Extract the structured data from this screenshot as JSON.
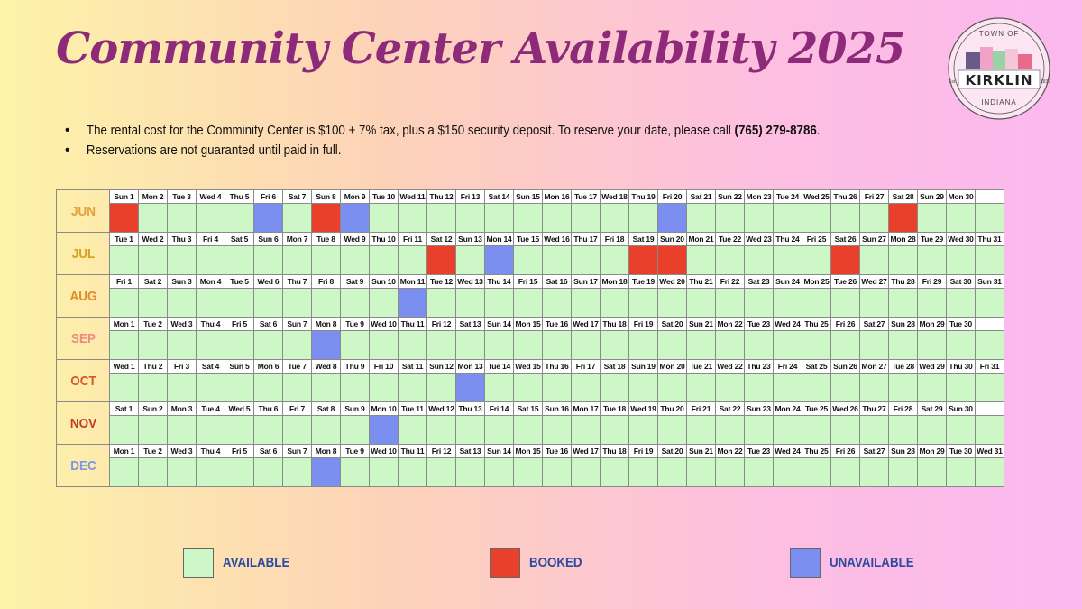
{
  "title": "Community Center Availability 2025",
  "logo": {
    "top_text": "TOWN OF",
    "name": "KIRKLIN",
    "est_left": "Est.",
    "est_right": "1837",
    "bottom_text": "INDIANA"
  },
  "notes": [
    {
      "text": "The rental cost for the Comminity Center is $100 + 7% tax, plus a $150 security deposit. To reserve your date, please call ",
      "bold": "(765) 279-8786",
      "tail": "."
    },
    {
      "text": "Reservations are not guaranted until paid in full.",
      "bold": "",
      "tail": ""
    }
  ],
  "colors": {
    "available": "#cdf7c6",
    "booked": "#e8402b",
    "unavailable": "#7b8ff0"
  },
  "months": [
    {
      "name": "JUN",
      "color": "#e2a13c",
      "days": [
        "Sun 1",
        "Mon 2",
        "Tue 3",
        "Wed 4",
        "Thu 5",
        "Fri 6",
        "Sat 7",
        "Sun 8",
        "Mon 9",
        "Tue 10",
        "Wed 11",
        "Thu 12",
        "Fri 13",
        "Sat 14",
        "Sun 15",
        "Mon 16",
        "Tue 17",
        "Wed 18",
        "Thu 19",
        "Fri 20",
        "Sat 21",
        "Sun 22",
        "Mon 23",
        "Tue 24",
        "Wed 25",
        "Thu 26",
        "Fri 27",
        "Sat 28",
        "Sun 29",
        "Mon 30"
      ],
      "booked": [
        1,
        8,
        28
      ],
      "unavailable": [
        6,
        9,
        20
      ]
    },
    {
      "name": "JUL",
      "color": "#d4a020",
      "days": [
        "Tue 1",
        "Wed 2",
        "Thu 3",
        "Fri 4",
        "Sat 5",
        "Sun 6",
        "Mon 7",
        "Tue 8",
        "Wed 9",
        "Thu 10",
        "Fri 11",
        "Sat 12",
        "Sun 13",
        "Mon 14",
        "Tue 15",
        "Wed 16",
        "Thu 17",
        "Fri 18",
        "Sat 19",
        "Sun 20",
        "Mon 21",
        "Tue 22",
        "Wed 23",
        "Thu 24",
        "Fri 25",
        "Sat 26",
        "Sun 27",
        "Mon 28",
        "Tue 29",
        "Wed 30",
        "Thu 31"
      ],
      "booked": [
        12,
        19,
        20,
        26
      ],
      "unavailable": [
        14
      ]
    },
    {
      "name": "AUG",
      "color": "#e08a2e",
      "days": [
        "Fri 1",
        "Sat 2",
        "Sun 3",
        "Mon 4",
        "Tue 5",
        "Wed 6",
        "Thu 7",
        "Fri 8",
        "Sat 9",
        "Sun 10",
        "Mon 11",
        "Tue 12",
        "Wed 13",
        "Thu 14",
        "Fri 15",
        "Sat 16",
        "Sun 17",
        "Mon 18",
        "Tue 19",
        "Wed 20",
        "Thu 21",
        "Fri 22",
        "Sat 23",
        "Sun 24",
        "Mon 25",
        "Tue 26",
        "Wed 27",
        "Thu 28",
        "Fri 29",
        "Sat 30",
        "Sun 31"
      ],
      "booked": [],
      "unavailable": [
        11
      ]
    },
    {
      "name": "SEP",
      "color": "#ee8a80",
      "days": [
        "Mon 1",
        "Tue 2",
        "Wed 3",
        "Thu 4",
        "Fri 5",
        "Sat 6",
        "Sun 7",
        "Mon 8",
        "Tue 9",
        "Wed 10",
        "Thu 11",
        "Fri 12",
        "Sat 13",
        "Sun 14",
        "Mon 15",
        "Tue 16",
        "Wed 17",
        "Thu 18",
        "Fri 19",
        "Sat 20",
        "Sun 21",
        "Mon 22",
        "Tue 23",
        "Wed 24",
        "Thu 25",
        "Fri 26",
        "Sat 27",
        "Sun 28",
        "Mon 29",
        "Tue 30"
      ],
      "booked": [],
      "unavailable": [
        8
      ]
    },
    {
      "name": "OCT",
      "color": "#d9542a",
      "days": [
        "Wed 1",
        "Thu 2",
        "Fri 3",
        "Sat 4",
        "Sun 5",
        "Mon 6",
        "Tue 7",
        "Wed 8",
        "Thu 9",
        "Fri 10",
        "Sat 11",
        "Sun 12",
        "Mon 13",
        "Tue 14",
        "Wed 15",
        "Thu 16",
        "Fri 17",
        "Sat 18",
        "Sun 19",
        "Mon 20",
        "Tue 21",
        "Wed 22",
        "Thu 23",
        "Fri 24",
        "Sat 25",
        "Sun 26",
        "Mon 27",
        "Tue 28",
        "Wed 29",
        "Thu 30",
        "Fri 31"
      ],
      "booked": [],
      "unavailable": [
        13
      ]
    },
    {
      "name": "NOV",
      "color": "#c8382a",
      "days": [
        "Sat 1",
        "Sun 2",
        "Mon 3",
        "Tue 4",
        "Wed 5",
        "Thu 6",
        "Fri 7",
        "Sat 8",
        "Sun 9",
        "Mon 10",
        "Tue 11",
        "Wed 12",
        "Thu 13",
        "Fri 14",
        "Sat 15",
        "Sun 16",
        "Mon 17",
        "Tue 18",
        "Wed 19",
        "Thu 20",
        "Fri 21",
        "Sat 22",
        "Sun 23",
        "Mon 24",
        "Tue 25",
        "Wed 26",
        "Thu 27",
        "Fri 28",
        "Sat 29",
        "Sun 30"
      ],
      "booked": [],
      "unavailable": [
        10
      ]
    },
    {
      "name": "DEC",
      "color": "#7f95e6",
      "days": [
        "Mon 1",
        "Tue 2",
        "Wed 3",
        "Thu 4",
        "Fri 5",
        "Sat 6",
        "Sun 7",
        "Mon 8",
        "Tue 9",
        "Wed 10",
        "Thu 11",
        "Fri 12",
        "Sat 13",
        "Sun 14",
        "Mon 15",
        "Tue 16",
        "Wed 17",
        "Thu 18",
        "Fri 19",
        "Sat 20",
        "Sun 21",
        "Mon 22",
        "Tue 23",
        "Wed 24",
        "Thu 25",
        "Fri 26",
        "Sat 27",
        "Sun 28",
        "Mon 29",
        "Tue 30",
        "Wed 31"
      ],
      "booked": [],
      "unavailable": [
        8
      ]
    }
  ],
  "legend": [
    {
      "key": "available",
      "label": "AVAILABLE"
    },
    {
      "key": "booked",
      "label": "BOOKED"
    },
    {
      "key": "unavailable",
      "label": "UNAVAILABLE"
    }
  ]
}
